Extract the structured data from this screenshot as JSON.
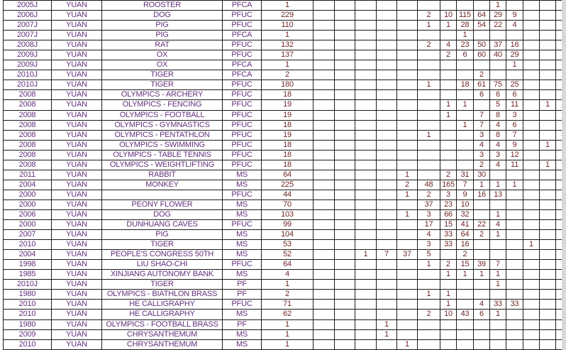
{
  "table": {
    "column_semantics": [
      "year",
      "currency",
      "description",
      "grade",
      "total",
      "grade-count x14"
    ],
    "rows": [
      {
        "year": "2005J",
        "currency": "YUAN",
        "description": "ROOSTER",
        "grade": "PFCA",
        "total": "1",
        "cells": [
          "",
          "",
          "",
          "",
          "",
          "",
          "",
          "",
          "",
          "1",
          "",
          "",
          "",
          ""
        ]
      },
      {
        "year": "2006J",
        "currency": "YUAN",
        "description": "DOG",
        "grade": "PFUC",
        "total": "229",
        "cells": [
          "",
          "",
          "",
          "",
          "",
          "2",
          "10",
          "115",
          "64",
          "29",
          "9",
          "",
          "",
          ""
        ]
      },
      {
        "year": "2007J",
        "currency": "YUAN",
        "description": "PIG",
        "grade": "PFUC",
        "total": "110",
        "cells": [
          "",
          "",
          "",
          "",
          "",
          "1",
          "1",
          "28",
          "54",
          "22",
          "4",
          "",
          "",
          ""
        ]
      },
      {
        "year": "2007J",
        "currency": "YUAN",
        "description": "PIG",
        "grade": "PFCA",
        "total": "1",
        "cells": [
          "",
          "",
          "",
          "",
          "",
          "",
          "",
          "1",
          "",
          "",
          "",
          "",
          "",
          ""
        ]
      },
      {
        "year": "2008J",
        "currency": "YUAN",
        "description": "RAT",
        "grade": "PFUC",
        "total": "132",
        "cells": [
          "",
          "",
          "",
          "",
          "",
          "2",
          "4",
          "23",
          "50",
          "37",
          "16",
          "",
          "",
          ""
        ]
      },
      {
        "year": "2009J",
        "currency": "YUAN",
        "description": "OX",
        "grade": "PFUC",
        "total": "137",
        "cells": [
          "",
          "",
          "",
          "",
          "",
          "",
          "2",
          "6",
          "60",
          "40",
          "29",
          "",
          "",
          ""
        ]
      },
      {
        "year": "2009J",
        "currency": "YUAN",
        "description": "OX",
        "grade": "PFCA",
        "total": "1",
        "cells": [
          "",
          "",
          "",
          "",
          "",
          "",
          "",
          "",
          "",
          "",
          "1",
          "",
          "",
          ""
        ]
      },
      {
        "year": "2010J",
        "currency": "YUAN",
        "description": "TIGER",
        "grade": "PFCA",
        "total": "2",
        "cells": [
          "",
          "",
          "",
          "",
          "",
          "",
          "",
          "",
          "2",
          "",
          "",
          "",
          "",
          ""
        ]
      },
      {
        "year": "2010J",
        "currency": "YUAN",
        "description": "TIGER",
        "grade": "PFUC",
        "total": "180",
        "cells": [
          "",
          "",
          "",
          "",
          "",
          "1",
          "",
          "18",
          "61",
          "75",
          "25",
          "",
          "",
          ""
        ]
      },
      {
        "year": "2008",
        "currency": "YUAN",
        "description": "OLYMPICS - ARCHERY",
        "grade": "PFUC",
        "total": "18",
        "cells": [
          "",
          "",
          "",
          "",
          "",
          "",
          "",
          "",
          "6",
          "6",
          "6",
          "",
          "",
          ""
        ]
      },
      {
        "year": "2008",
        "currency": "YUAN",
        "description": "OLYMPICS - FENCING",
        "grade": "PFUC",
        "total": "19",
        "cells": [
          "",
          "",
          "",
          "",
          "",
          "",
          "1",
          "1",
          "",
          "5",
          "11",
          "",
          "1",
          ""
        ]
      },
      {
        "year": "2008",
        "currency": "YUAN",
        "description": "OLYMPICS - FOOTBALL",
        "grade": "PFUC",
        "total": "19",
        "cells": [
          "",
          "",
          "",
          "",
          "",
          "",
          "1",
          "",
          "7",
          "8",
          "3",
          "",
          "",
          ""
        ]
      },
      {
        "year": "2008",
        "currency": "YUAN",
        "description": "OLYMPICS - GYMNASTICS",
        "grade": "PFUC",
        "total": "18",
        "cells": [
          "",
          "",
          "",
          "",
          "",
          "",
          "",
          "1",
          "7",
          "4",
          "6",
          "",
          "",
          ""
        ]
      },
      {
        "year": "2008",
        "currency": "YUAN",
        "description": "OLYMPICS - PENTATHLON",
        "grade": "PFUC",
        "total": "19",
        "cells": [
          "",
          "",
          "",
          "",
          "",
          "1",
          "",
          "",
          "3",
          "8",
          "7",
          "",
          "",
          ""
        ]
      },
      {
        "year": "2008",
        "currency": "YUAN",
        "description": "OLYMPICS - SWIMMING",
        "grade": "PFUC",
        "total": "18",
        "cells": [
          "",
          "",
          "",
          "",
          "",
          "",
          "",
          "",
          "4",
          "4",
          "9",
          "",
          "1",
          ""
        ]
      },
      {
        "year": "2008",
        "currency": "YUAN",
        "description": "OLYMPICS - TABLE TENNIS",
        "grade": "PFUC",
        "total": "18",
        "cells": [
          "",
          "",
          "",
          "",
          "",
          "",
          "",
          "",
          "3",
          "3",
          "12",
          "",
          "",
          ""
        ]
      },
      {
        "year": "2008",
        "currency": "YUAN",
        "description": "OLYMPICS - WEIGHTLIFTING",
        "grade": "PFUC",
        "total": "18",
        "cells": [
          "",
          "",
          "",
          "",
          "",
          "",
          "",
          "",
          "2",
          "4",
          "11",
          "",
          "1",
          ""
        ]
      },
      {
        "year": "2011",
        "currency": "YUAN",
        "description": "RABBIT",
        "grade": "MS",
        "total": "64",
        "cells": [
          "",
          "",
          "",
          "",
          "1",
          "",
          "2",
          "31",
          "30",
          "",
          "",
          "",
          "",
          ""
        ]
      },
      {
        "year": "2004",
        "currency": "YUAN",
        "description": "MONKEY",
        "grade": "MS",
        "total": "225",
        "cells": [
          "",
          "",
          "",
          "",
          "2",
          "48",
          "165",
          "7",
          "1",
          "1",
          "1",
          "",
          "",
          ""
        ]
      },
      {
        "year": "2000",
        "currency": "YUAN",
        "description": "",
        "grade": "PFUC",
        "total": "44",
        "cells": [
          "",
          "",
          "",
          "",
          "1",
          "2",
          "3",
          "9",
          "16",
          "13",
          "",
          "",
          "",
          ""
        ]
      },
      {
        "year": "2000",
        "currency": "YUAN",
        "description": "PEONY FLOWER",
        "grade": "MS",
        "total": "70",
        "cells": [
          "",
          "",
          "",
          "",
          "",
          "37",
          "23",
          "10",
          "",
          "",
          "",
          "",
          "",
          ""
        ]
      },
      {
        "year": "2006",
        "currency": "YUAN",
        "description": "DOG",
        "grade": "MS",
        "total": "103",
        "cells": [
          "",
          "",
          "",
          "",
          "1",
          "3",
          "66",
          "32",
          "",
          "1",
          "",
          "",
          "",
          ""
        ]
      },
      {
        "year": "2000",
        "currency": "YUAN",
        "description": "DUNHUANG CAVES",
        "grade": "PFUC",
        "total": "99",
        "cells": [
          "",
          "",
          "",
          "",
          "",
          "17",
          "15",
          "41",
          "22",
          "4",
          "",
          "",
          "",
          ""
        ]
      },
      {
        "year": "2007",
        "currency": "YUAN",
        "description": "PIG",
        "grade": "MS",
        "total": "104",
        "cells": [
          "",
          "",
          "",
          "",
          "",
          "4",
          "33",
          "64",
          "2",
          "1",
          "",
          "",
          "",
          ""
        ]
      },
      {
        "year": "2010",
        "currency": "YUAN",
        "description": "TIGER",
        "grade": "MS",
        "total": "53",
        "cells": [
          "",
          "",
          "",
          "",
          "",
          "3",
          "33",
          "16",
          "",
          "",
          "",
          "1",
          "",
          ""
        ]
      },
      {
        "year": "2004",
        "currency": "YUAN",
        "description": "PEOPLE'S CONGRESS 50TH",
        "grade": "MS",
        "total": "52",
        "cells": [
          "",
          "",
          "1",
          "7",
          "37",
          "5",
          "",
          "2",
          "",
          "",
          "",
          "",
          "",
          ""
        ]
      },
      {
        "year": "1998",
        "currency": "YUAN",
        "description": "LIU SHAO-CHI",
        "grade": "PFUC",
        "total": "64",
        "cells": [
          "",
          "",
          "",
          "",
          "",
          "1",
          "2",
          "15",
          "39",
          "7",
          "",
          "",
          "",
          ""
        ]
      },
      {
        "year": "1985",
        "currency": "YUAN",
        "description": "XINJIANG AUTONOMY BANK",
        "grade": "MS",
        "total": "4",
        "cells": [
          "",
          "",
          "",
          "",
          "",
          "",
          "1",
          "1",
          "1",
          "1",
          "",
          "",
          "",
          ""
        ]
      },
      {
        "year": "2010J",
        "currency": "YUAN",
        "description": "TIGER",
        "grade": "PF",
        "total": "1",
        "cells": [
          "",
          "",
          "",
          "",
          "",
          "",
          "",
          "",
          "",
          "1",
          "",
          "",
          "",
          ""
        ]
      },
      {
        "year": "1980",
        "currency": "YUAN",
        "description": "OLYMPICS - BIATHLON BRASS",
        "grade": "PF",
        "total": "2",
        "cells": [
          "",
          "",
          "",
          "",
          "",
          "1",
          "1",
          "",
          "",
          "",
          "",
          "",
          "",
          ""
        ]
      },
      {
        "year": "2010",
        "currency": "YUAN",
        "description": "HE CALLIGRAPHY",
        "grade": "PFUC",
        "total": "71",
        "cells": [
          "",
          "",
          "",
          "",
          "",
          "",
          "1",
          "",
          "4",
          "33",
          "33",
          "",
          "",
          ""
        ]
      },
      {
        "year": "2010",
        "currency": "YUAN",
        "description": "HE CALLIGRAPHY",
        "grade": "MS",
        "total": "62",
        "cells": [
          "",
          "",
          "",
          "",
          "",
          "2",
          "10",
          "43",
          "6",
          "1",
          "",
          "",
          "",
          ""
        ]
      },
      {
        "year": "1980",
        "currency": "YUAN",
        "description": "OLYMPICS - FOOTBALL BRASS",
        "grade": "PF",
        "total": "1",
        "cells": [
          "",
          "",
          "",
          "1",
          "",
          "",
          "",
          "",
          "",
          "",
          "",
          "",
          "",
          ""
        ]
      },
      {
        "year": "2009",
        "currency": "YUAN",
        "description": "CHRYSANTHEMUM",
        "grade": "MS",
        "total": "1",
        "cells": [
          "",
          "",
          "",
          "1",
          "",
          "",
          "",
          "",
          "",
          "",
          "",
          "",
          "",
          ""
        ]
      },
      {
        "year": "2010",
        "currency": "YUAN",
        "description": "CHRYSANTHEMUM",
        "grade": "MS",
        "total": "1",
        "cells": [
          "",
          "",
          "",
          "",
          "1",
          "",
          "",
          "",
          "",
          "",
          "",
          "",
          "",
          ""
        ]
      }
    ]
  },
  "colors": {
    "gridline": "#1b1b1b",
    "label_text": "#63307c",
    "number_text": "#702626",
    "table_background": "#ffffff",
    "outside_background": "#d9d9d9"
  }
}
